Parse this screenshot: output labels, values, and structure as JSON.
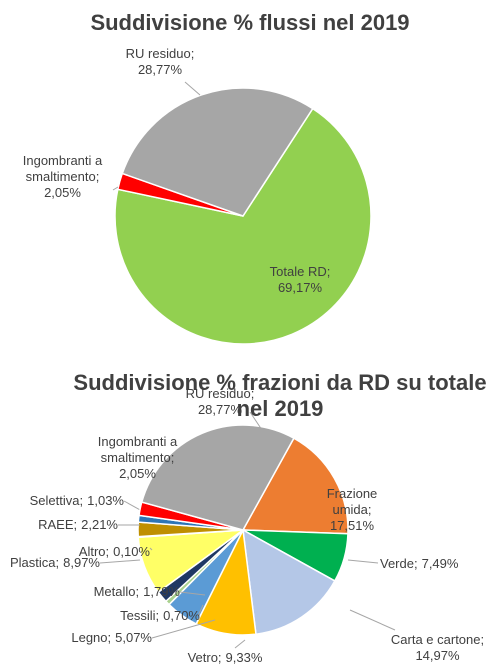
{
  "chart_data": [
    {
      "type": "pie",
      "title": "Suddivisione % flussi nel 2019",
      "categories": [
        "Totale RD;",
        "Ingombranti a smaltimento;",
        "RU residuo;"
      ],
      "values": [
        69.17,
        2.05,
        28.77
      ],
      "value_labels": [
        "69,17%",
        "2,05%",
        "28,77%"
      ],
      "colors": [
        "#92d050",
        "#ff0000",
        "#a6a6a6"
      ]
    },
    {
      "type": "pie",
      "title": "Suddivisione % frazioni da RD su totale nel 2019",
      "categories": [
        "Frazione umida;",
        "Verde;",
        "Carta e cartone;",
        "Vetro;",
        "Legno;",
        "Tessili;",
        "Metallo;",
        "Plastica;",
        "Altro;",
        "RAEE;",
        "Selettiva;",
        "Ingombranti a smaltimento;",
        "RU residuo;"
      ],
      "values": [
        17.51,
        7.49,
        14.97,
        9.33,
        5.07,
        0.7,
        1.79,
        8.97,
        0.1,
        2.21,
        1.03,
        2.05,
        28.77
      ],
      "value_labels": [
        "17,51%",
        "7,49%",
        "14,97%",
        "9,33%",
        "5,07%",
        "0,70%",
        "1,79%",
        "8,97%",
        "0,10%",
        "2,21%",
        "1,03%",
        "2,05%",
        "28,77%"
      ],
      "colors": [
        "#ed7d31",
        "#00b050",
        "#b4c7e7",
        "#ffc000",
        "#5b9bd5",
        "#a9d18e",
        "#1f3864",
        "#ffff66",
        "#ffffff",
        "#bf8f00",
        "#2e75b6",
        "#ff0000",
        "#a6a6a6"
      ]
    }
  ]
}
